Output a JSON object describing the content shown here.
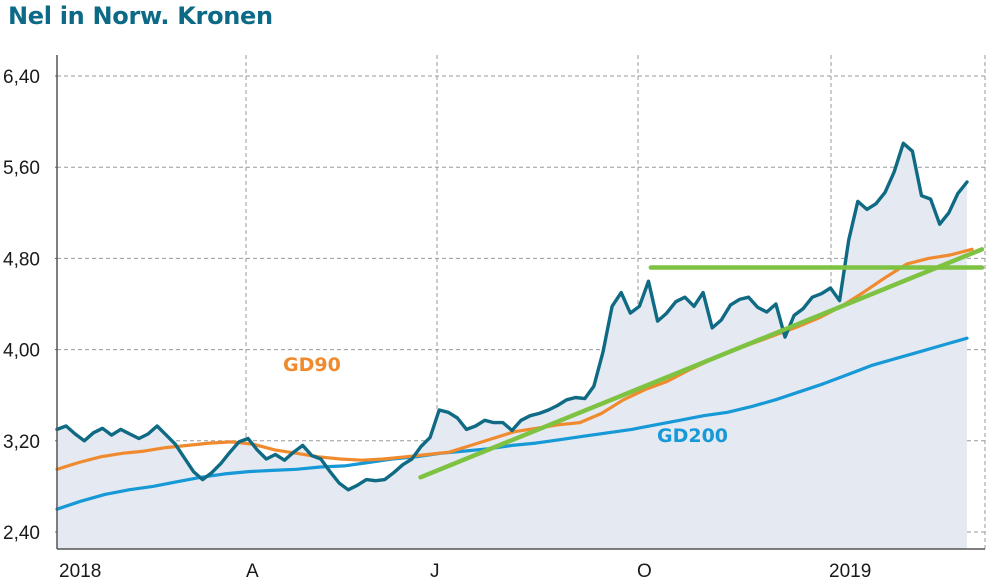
{
  "title": "Nel in Norw. Kronen",
  "chart_data": {
    "type": "line",
    "title": "Nel in Norw. Kronen",
    "xlabel": "",
    "ylabel": "",
    "x_tick_labels": [
      "2018",
      "A",
      "J",
      "O",
      "2019"
    ],
    "y_ticks": [
      "2,40",
      "3,20",
      "4,00",
      "4,80",
      "5,60",
      "6,40"
    ],
    "ylim": [
      2.4,
      6.4
    ],
    "grid": true,
    "colors": {
      "price": "#0f6a83",
      "area": "#e4e9f2",
      "gd90": "#f08a2e",
      "gd200": "#1699d6",
      "trend": "#7ec242",
      "grid": "#9a9a9a"
    },
    "series": [
      {
        "name": "Nel",
        "values": [
          3.3,
          3.33,
          3.26,
          3.2,
          3.27,
          3.31,
          3.25,
          3.3,
          3.26,
          3.22,
          3.26,
          3.33,
          3.25,
          3.17,
          3.05,
          2.93,
          2.86,
          2.92,
          3.0,
          3.1,
          3.19,
          3.22,
          3.12,
          3.04,
          3.08,
          3.03,
          3.1,
          3.16,
          3.07,
          3.04,
          2.93,
          2.83,
          2.77,
          2.81,
          2.86,
          2.85,
          2.86,
          2.92,
          2.99,
          3.04,
          3.15,
          3.23,
          3.47,
          3.45,
          3.4,
          3.3,
          3.33,
          3.38,
          3.36,
          3.36,
          3.29,
          3.38,
          3.42,
          3.44,
          3.47,
          3.51,
          3.56,
          3.58,
          3.57,
          3.68,
          3.98,
          4.38,
          4.5,
          4.32,
          4.38,
          4.6,
          4.25,
          4.32,
          4.42,
          4.46,
          4.38,
          4.5,
          4.19,
          4.26,
          4.39,
          4.44,
          4.46,
          4.37,
          4.33,
          4.4,
          4.11,
          4.3,
          4.36,
          4.46,
          4.49,
          4.54,
          4.43,
          4.96,
          5.3,
          5.23,
          5.28,
          5.38,
          5.56,
          5.81,
          5.74,
          5.35,
          5.32,
          5.1,
          5.2,
          5.37,
          5.47
        ]
      },
      {
        "name": "GD90",
        "values": [
          2.95,
          3.01,
          3.06,
          3.09,
          3.11,
          3.14,
          3.16,
          3.18,
          3.19,
          3.17,
          3.12,
          3.09,
          3.06,
          3.04,
          3.03,
          3.04,
          3.06,
          3.08,
          3.1,
          3.16,
          3.22,
          3.28,
          3.31,
          3.34,
          3.36,
          3.44,
          3.56,
          3.65,
          3.72,
          3.82,
          3.91,
          3.99,
          4.06,
          4.13,
          4.2,
          4.28,
          4.38,
          4.5,
          4.63,
          4.75,
          4.8,
          4.83,
          4.88
        ]
      },
      {
        "name": "GD200",
        "values": [
          2.6,
          2.67,
          2.73,
          2.77,
          2.8,
          2.84,
          2.88,
          2.91,
          2.93,
          2.94,
          2.95,
          2.97,
          2.98,
          3.01,
          3.04,
          3.06,
          3.09,
          3.11,
          3.13,
          3.16,
          3.18,
          3.21,
          3.24,
          3.27,
          3.3,
          3.34,
          3.38,
          3.42,
          3.45,
          3.5,
          3.56,
          3.63,
          3.7,
          3.78,
          3.86,
          3.92,
          3.98,
          4.04,
          4.1
        ]
      }
    ],
    "trend_lines": [
      {
        "from": [
          0.393,
          2.88
        ],
        "to": [
          1.0,
          4.88
        ]
      },
      {
        "from": [
          0.642,
          4.72
        ],
        "to": [
          1.0,
          4.72
        ]
      }
    ],
    "annotations": [
      {
        "text": "GD90",
        "series": "GD90"
      },
      {
        "text": "GD200",
        "series": "GD200"
      }
    ]
  }
}
